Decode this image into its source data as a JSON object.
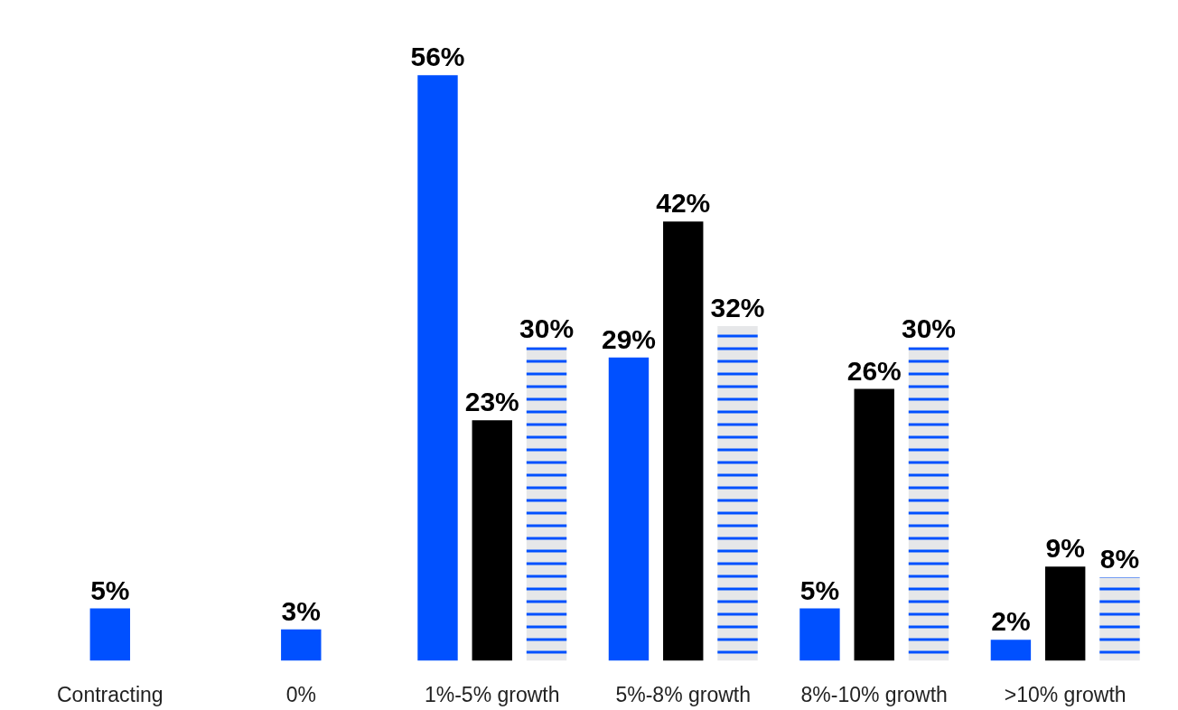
{
  "chart_data": {
    "type": "bar",
    "categories": [
      "Contracting",
      "0%",
      "1%-5% growth",
      "5%-8% growth",
      "8%-10% growth",
      ">10% growth"
    ],
    "series": [
      {
        "color": "#0050ff",
        "values": [
          5,
          3,
          56,
          29,
          5,
          2
        ],
        "value_labels": [
          "5%",
          "3%",
          "56%",
          "29%",
          "5%",
          "2%"
        ]
      },
      {
        "color": "#000000",
        "values": [
          null,
          null,
          23,
          42,
          26,
          9
        ],
        "value_labels": [
          null,
          null,
          "23%",
          "42%",
          "26%",
          "9%"
        ]
      },
      {
        "color": "#e6e7e9",
        "values": [
          null,
          null,
          30,
          32,
          30,
          8
        ],
        "value_labels": [
          null,
          null,
          "30%",
          "32%",
          "30%",
          "8%"
        ]
      }
    ],
    "grid": false,
    "tick_labels": "x"
  }
}
